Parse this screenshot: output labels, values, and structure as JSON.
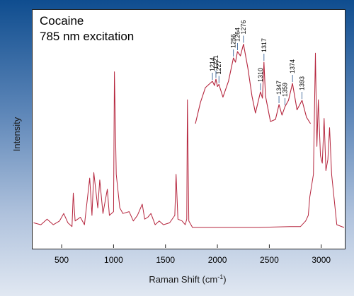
{
  "chart_data": {
    "type": "line",
    "title_lines": [
      "Cocaine",
      "785 nm excitation"
    ],
    "xlabel": "Raman Shift (cm",
    "xlabel_sup": "-1",
    "xlabel_close": ")",
    "ylabel": "Intensity",
    "xlim": [
      220,
      3220
    ],
    "ylim": [
      0,
      100
    ],
    "x_ticks": [
      500,
      1000,
      1500,
      2000,
      2500,
      3000
    ],
    "line_color": "#b5253d",
    "main_series": {
      "x": [
        230,
        300,
        360,
        420,
        480,
        520,
        560,
        600,
        612,
        630,
        680,
        720,
        770,
        792,
        810,
        848,
        867,
        898,
        940,
        960,
        1000,
        1008,
        1026,
        1060,
        1090,
        1150,
        1190,
        1230,
        1276,
        1300,
        1330,
        1360,
        1400,
        1440,
        1480,
        1540,
        1590,
        1602,
        1620,
        1660,
        1690,
        1705,
        1711,
        1725,
        1760,
        2000,
        2400,
        2700,
        2800,
        2850,
        2875,
        2890,
        2925,
        2944,
        2958,
        2972,
        2992,
        3010,
        3028,
        3045,
        3064,
        3080,
        3100,
        3150,
        3220
      ],
      "y": [
        4,
        3,
        6,
        3,
        5,
        9,
        4,
        2,
        20,
        5,
        7,
        3,
        28,
        8,
        31,
        12,
        27,
        9,
        22,
        8,
        10,
        85,
        30,
        12,
        9,
        10,
        5,
        8,
        14,
        6,
        7,
        9,
        3,
        5,
        3,
        4,
        8,
        30,
        6,
        5,
        3,
        6,
        70,
        5,
        1.5,
        1.5,
        1.5,
        2,
        2,
        5,
        8,
        18,
        30,
        95,
        45,
        70,
        40,
        36,
        60,
        32,
        38,
        55,
        30,
        3,
        1.5
      ]
    },
    "inset_series": {
      "x": [
        1180,
        1190,
        1200,
        1214,
        1218,
        1221,
        1224,
        1227,
        1235,
        1246,
        1256,
        1260,
        1264,
        1270,
        1276,
        1285,
        1293,
        1300,
        1310,
        1314,
        1317,
        1320,
        1330,
        1340,
        1347,
        1353,
        1359,
        1366,
        1374,
        1383,
        1393,
        1402,
        1410
      ],
      "y": [
        20,
        40,
        54,
        60,
        56,
        62,
        55,
        57,
        45,
        60,
        82,
        78,
        88,
        84,
        95,
        72,
        46,
        30,
        50,
        44,
        78,
        46,
        22,
        24,
        38,
        28,
        36,
        42,
        58,
        33,
        42,
        26,
        20
      ]
    },
    "inset_xlim": [
      1180,
      1412
    ],
    "inset_ylim": [
      0,
      100
    ],
    "peak_labels": [
      "1214",
      "1221",
      "1227",
      "1256",
      "1264",
      "1276",
      "1310",
      "1317",
      "1347",
      "1359",
      "1374",
      "1393"
    ]
  }
}
